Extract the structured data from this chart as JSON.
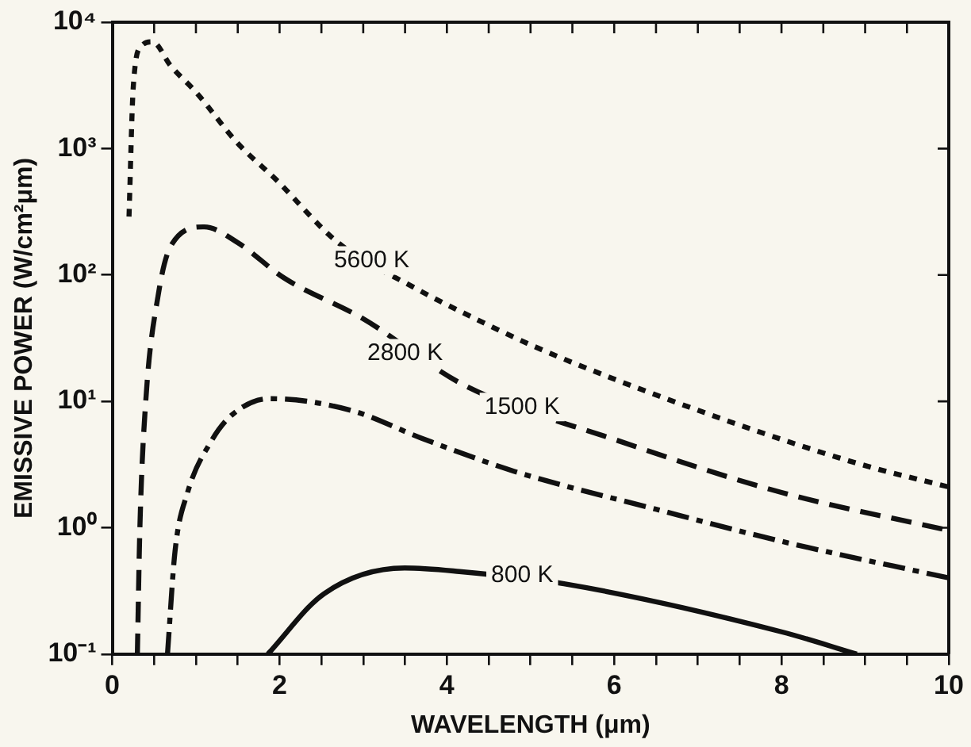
{
  "chart_data": {
    "type": "line",
    "xlabel": "WAVELENGTH (μm)",
    "ylabel": "EMISSIVE POWER (W/cm²μm)",
    "log": "y",
    "grid": false,
    "legend": false,
    "marker": "none",
    "xlim": [
      0,
      10
    ],
    "xticks": [
      0,
      {
        "value": 0.5,
        "label": null
      },
      {
        "value": 1,
        "label": null
      },
      {
        "value": 1.5,
        "label": null
      },
      2,
      {
        "value": 2.5,
        "label": null
      },
      {
        "value": 3,
        "label": null
      },
      {
        "value": 3.5,
        "label": null
      },
      4,
      {
        "value": 4.5,
        "label": null
      },
      {
        "value": 5,
        "label": null
      },
      {
        "value": 5.5,
        "label": null
      },
      6,
      {
        "value": 6.5,
        "label": null
      },
      {
        "value": 7,
        "label": null
      },
      {
        "value": 7.5,
        "label": null
      },
      8,
      {
        "value": 8.5,
        "label": null
      },
      {
        "value": 9,
        "label": null
      },
      {
        "value": 9.5,
        "label": null
      },
      10
    ],
    "ylim": [
      0.1,
      10000
    ],
    "yticks": [
      {
        "value": 0.1,
        "label": "10⁻¹"
      },
      {
        "value": 1,
        "label": "10⁰"
      },
      {
        "value": 10,
        "label": "10¹"
      },
      {
        "value": 100,
        "label": "10²"
      },
      {
        "value": 1000,
        "label": "10³"
      },
      {
        "value": 10000,
        "label": "10⁴"
      }
    ],
    "series": [
      {
        "color": "#111111",
        "line_style": "dotted",
        "x": [
          0.2,
          0.25,
          0.35,
          0.48,
          0.7,
          1.0,
          1.5,
          1.95,
          2.7,
          3.6,
          4.2,
          5,
          6,
          7,
          8,
          9,
          10
        ],
        "values": [
          290,
          3000,
          6500,
          7000,
          4500,
          2800,
          1100,
          575,
          180,
          80,
          50,
          28,
          15,
          8.5,
          5,
          3.1,
          2.1
        ]
      },
      {
        "color": "#111111",
        "line_style": "dashed",
        "x": [
          0.3,
          0.33,
          0.4,
          0.55,
          0.7,
          1.1,
          1.5,
          2.05,
          3,
          4.2,
          6,
          8,
          10
        ],
        "values": [
          0.1,
          1,
          10,
          70,
          170,
          240,
          180,
          95,
          45,
          13.5,
          5,
          1.9,
          0.95
        ]
      },
      {
        "color": "#111111",
        "line_style": "dashdot",
        "x": [
          0.66,
          0.75,
          0.9,
          1.18,
          1.43,
          1.88,
          2.85,
          3.7,
          4.8,
          6.5,
          8,
          10
        ],
        "values": [
          0.1,
          0.65,
          1.9,
          4.8,
          7.8,
          10.5,
          8.5,
          5.1,
          2.8,
          1.4,
          0.78,
          0.4
        ]
      },
      {
        "color": "#111111",
        "line_style": "solid",
        "x": [
          1.86,
          2.53,
          3.5,
          4.15,
          5.4,
          8,
          8.9
        ],
        "values": [
          0.1,
          0.3,
          0.48,
          0.45,
          0.36,
          0.15,
          0.1
        ]
      }
    ],
    "annotations": [
      {
        "text": "5600 K",
        "x": 3.1,
        "y": 130
      },
      {
        "text": "2800 K",
        "x": 3.5,
        "y": 24
      },
      {
        "text": "1500 K",
        "x": 4.9,
        "y": 9
      },
      {
        "text": "800 K",
        "x": 4.9,
        "y": 0.42
      }
    ]
  }
}
